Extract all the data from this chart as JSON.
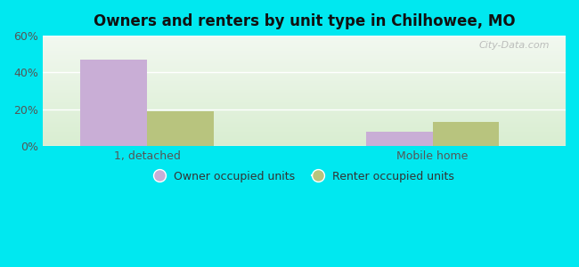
{
  "title": "Owners and renters by unit type in Chilhowee, MO",
  "categories": [
    "1, detached",
    "Mobile home"
  ],
  "owner_values": [
    47,
    8
  ],
  "renter_values": [
    19,
    13
  ],
  "owner_color": "#c9aed6",
  "renter_color": "#b8c47e",
  "ylim": [
    0,
    60
  ],
  "yticks": [
    0,
    20,
    40,
    60
  ],
  "ytick_labels": [
    "0%",
    "20%",
    "40%",
    "60%"
  ],
  "legend_owner": "Owner occupied units",
  "legend_renter": "Renter occupied units",
  "background_outer": "#00e8f0",
  "watermark": "City-Data.com",
  "bar_width": 0.35,
  "group_positions": [
    0.5,
    2.0
  ],
  "xlim": [
    -0.05,
    2.7
  ]
}
